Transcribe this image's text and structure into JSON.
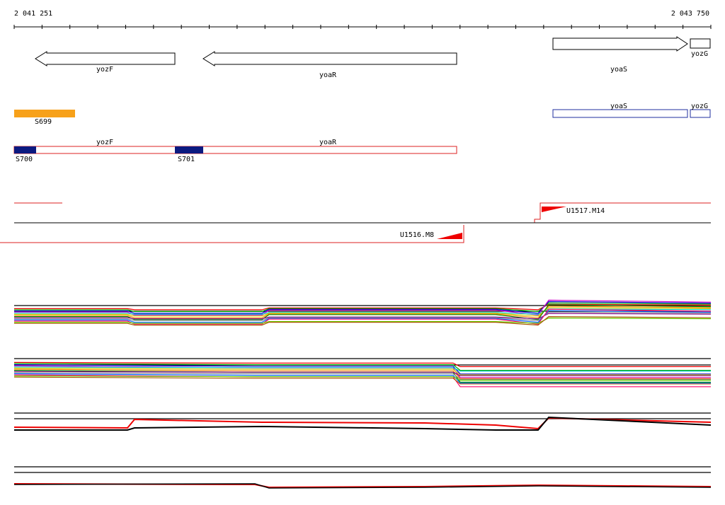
{
  "ruler": {
    "start": "2 041 251",
    "end": "2 043 750"
  },
  "genes": [
    "yozF",
    "yoaR",
    "yoaS",
    "yozG"
  ],
  "regions": {
    "top": [
      "S699",
      "yoaS",
      "yozG"
    ],
    "bottom": [
      "yozF",
      "yoaR",
      "S700",
      "S701"
    ]
  },
  "transcripts": [
    "U1517.M14",
    "U1516.M8"
  ]
}
